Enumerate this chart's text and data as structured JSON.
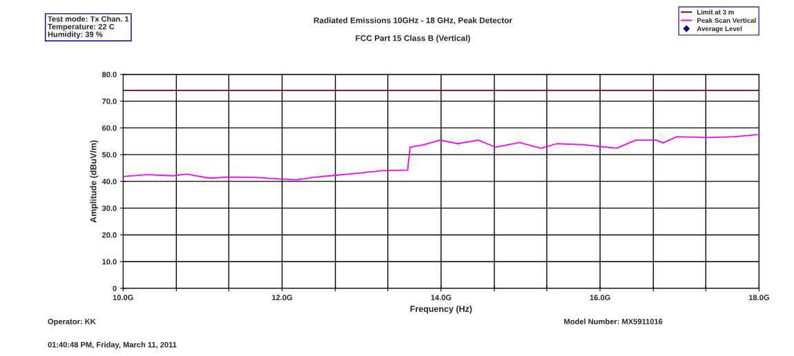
{
  "chart_data": {
    "type": "line",
    "title": "Radiated Emissions 10GHz - 18 GHz, Peak Detector",
    "subtitle": "FCC Part 15 Class B (Vertical)",
    "xlabel": "Frequency (Hz)",
    "ylabel": "Amplitude (dBuV/m)",
    "annotations": [
      "Test mode: Tx Chan. 1\nTemperature: 22 C\nHumidity: 39 %",
      "Operator: KK",
      "01:40:48 PM, Friday, March 11, 2011",
      "Model Number: MX5911016"
    ],
    "series": [
      {
        "name": "Limit at 3 m",
        "color": "#800000",
        "x": [
          10.0,
          18.0
        ],
        "values": [
          74.0,
          74.0
        ]
      },
      {
        "name": "Peak Scan Vertical",
        "color": "#ff00ff",
        "x": [
          10.0,
          10.3,
          10.63,
          10.8,
          11.09,
          11.32,
          11.67,
          11.96,
          12.19,
          12.39,
          12.68,
          12.97,
          13.26,
          13.58,
          13.61,
          13.78,
          13.99,
          14.21,
          14.47,
          14.68,
          14.99,
          15.26,
          15.46,
          15.81,
          16.01,
          16.21,
          16.45,
          16.71,
          16.79,
          16.97,
          17.34,
          17.69,
          17.98
        ],
        "values": [
          41.8,
          42.5,
          42.1,
          42.7,
          41.2,
          41.6,
          41.5,
          40.9,
          40.6,
          41.5,
          42.3,
          43.1,
          44.0,
          44.2,
          52.8,
          53.7,
          55.4,
          54.1,
          55.4,
          52.8,
          54.5,
          52.4,
          54.1,
          53.7,
          53.0,
          52.4,
          55.4,
          55.4,
          54.4,
          56.7,
          56.4,
          56.7,
          57.5
        ]
      },
      {
        "name": "Average Level",
        "type": "scatter",
        "color": "#000080",
        "marker": "diamond"
      }
    ],
    "xlim": [
      10.0,
      18.0
    ],
    "xticks": [
      {
        "value": 10.0,
        "label": "10.0G"
      },
      {
        "value": 10.67,
        "label": null
      },
      {
        "value": 11.33,
        "label": null
      },
      {
        "value": 12.0,
        "label": "12.0G"
      },
      {
        "value": 12.67,
        "label": null
      },
      {
        "value": 13.33,
        "label": null
      },
      {
        "value": 14.0,
        "label": "14.0G"
      },
      {
        "value": 14.67,
        "label": null
      },
      {
        "value": 15.33,
        "label": null
      },
      {
        "value": 16.0,
        "label": "16.0G"
      },
      {
        "value": 16.67,
        "label": null
      },
      {
        "value": 17.33,
        "label": null
      },
      {
        "value": 18.0,
        "label": "18.0G"
      }
    ],
    "ylim": [
      0,
      80
    ],
    "yticks": [
      0,
      {
        "value": 10,
        "label": "10.0"
      },
      {
        "value": 20,
        "label": "20.0"
      },
      {
        "value": 30,
        "label": "30.0"
      },
      {
        "value": 40,
        "label": "40.0"
      },
      {
        "value": 50,
        "label": "50.0"
      },
      {
        "value": 60,
        "label": "60.0"
      },
      {
        "value": 70,
        "label": "70.0"
      },
      {
        "value": 80,
        "label": "80.0"
      }
    ],
    "grid": true,
    "legend": "top right"
  }
}
